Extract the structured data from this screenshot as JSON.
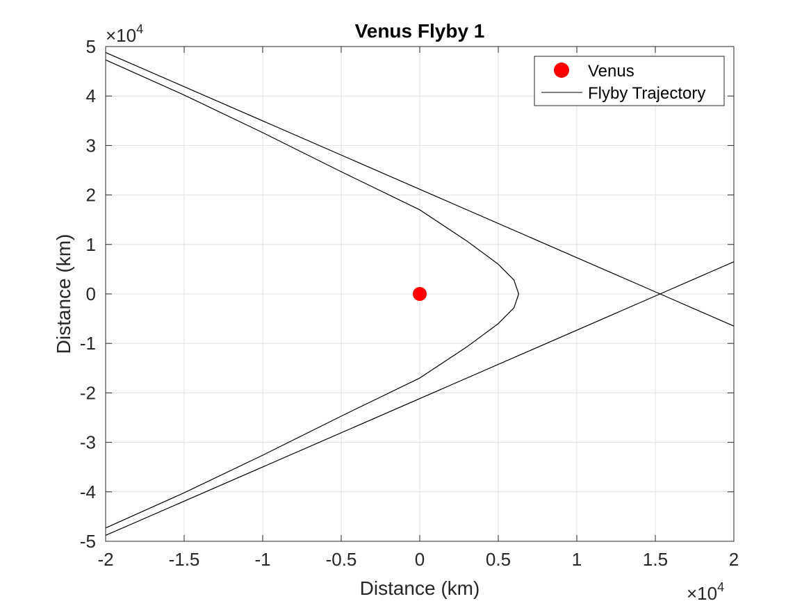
{
  "chart_data": {
    "type": "line",
    "title": "Venus Flyby 1",
    "xlabel": "Distance (km)",
    "ylabel": "Distance (km)",
    "xlim": [
      -20000,
      20000
    ],
    "ylim": [
      -50000,
      50000
    ],
    "x_ticks": [
      -20000,
      -15000,
      -10000,
      -5000,
      0,
      5000,
      10000,
      15000,
      20000
    ],
    "x_tick_labels": [
      "-2",
      "-1.5",
      "-1",
      "-0.5",
      "0",
      "0.5",
      "1",
      "1.5",
      "2"
    ],
    "y_ticks": [
      -50000,
      -40000,
      -30000,
      -20000,
      -10000,
      0,
      10000,
      20000,
      30000,
      40000,
      50000
    ],
    "y_tick_labels": [
      "-5",
      "-4",
      "-3",
      "-2",
      "-1",
      "0",
      "1",
      "2",
      "3",
      "4",
      "5"
    ],
    "x_exponent": {
      "base": "×10",
      "power": "4"
    },
    "y_exponent": {
      "base": "×10",
      "power": "4"
    },
    "grid": true,
    "legend_position": "top-right",
    "series": [
      {
        "name": "Venus",
        "kind": "marker",
        "color": "#ff0000",
        "x": [
          0
        ],
        "y": [
          0
        ]
      },
      {
        "name": "Flyby Trajectory",
        "kind": "line",
        "color": "#000000",
        "segments": [
          {
            "x": [
              -20000,
              -15000,
              -10000,
              -5000,
              0,
              3000,
              5000,
              6000,
              6300,
              6000,
              5000,
              3000,
              0,
              -5000,
              -10000,
              -15000,
              -20000
            ],
            "y": [
              47300,
              40200,
              32600,
              24700,
              17000,
              10700,
              6000,
              2800,
              0,
              -2800,
              -6000,
              -10700,
              -17000,
              -24700,
              -32600,
              -40200,
              -47300
            ]
          },
          {
            "x": [
              -20000,
              15300,
              20000
            ],
            "y": [
              48800,
              0,
              -6500
            ]
          },
          {
            "x": [
              -20000,
              15300,
              20000
            ],
            "y": [
              -48800,
              0,
              6500
            ]
          }
        ]
      }
    ]
  }
}
